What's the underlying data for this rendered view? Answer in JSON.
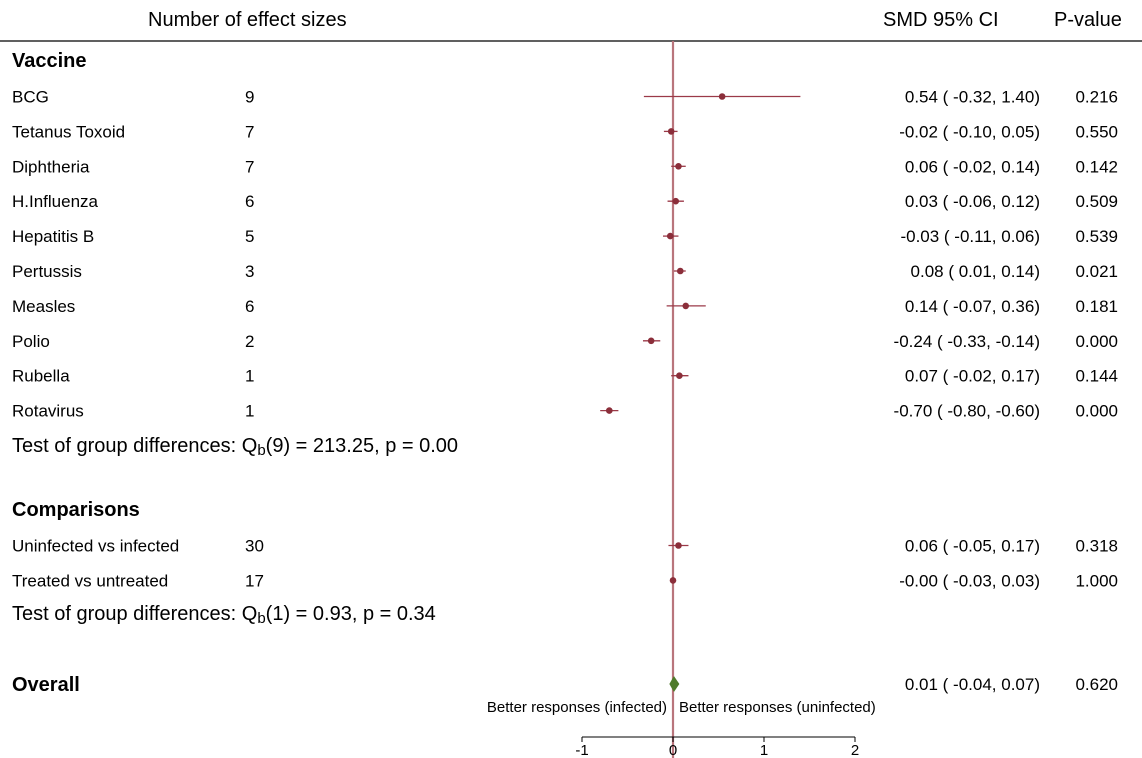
{
  "chart_data": {
    "type": "forest",
    "columns": {
      "count_header": "Number of effect sizes",
      "smd_header": "SMD 95% CI",
      "p_header": "P-value"
    },
    "groups": [
      {
        "name": "Vaccine",
        "rows": [
          {
            "label": "BCG",
            "n": "9",
            "smd": 0.54,
            "lo": -0.32,
            "hi": 1.4,
            "ci_text": "0.54 ( -0.32,  1.40)",
            "p": "0.216"
          },
          {
            "label": "Tetanus Toxoid",
            "n": "7",
            "smd": -0.02,
            "lo": -0.1,
            "hi": 0.05,
            "ci_text": "-0.02 ( -0.10,  0.05)",
            "p": "0.550"
          },
          {
            "label": "Diphtheria",
            "n": "7",
            "smd": 0.06,
            "lo": -0.02,
            "hi": 0.14,
            "ci_text": "0.06 ( -0.02,  0.14)",
            "p": "0.142"
          },
          {
            "label": "H.Influenza",
            "n": "6",
            "smd": 0.03,
            "lo": -0.06,
            "hi": 0.12,
            "ci_text": "0.03 ( -0.06,  0.12)",
            "p": "0.509"
          },
          {
            "label": "Hepatitis B",
            "n": "5",
            "smd": -0.03,
            "lo": -0.11,
            "hi": 0.06,
            "ci_text": "-0.03 ( -0.11,  0.06)",
            "p": "0.539"
          },
          {
            "label": "Pertussis",
            "n": "3",
            "smd": 0.08,
            "lo": 0.01,
            "hi": 0.14,
            "ci_text": "0.08 (  0.01,  0.14)",
            "p": "0.021"
          },
          {
            "label": "Measles",
            "n": "6",
            "smd": 0.14,
            "lo": -0.07,
            "hi": 0.36,
            "ci_text": "0.14 ( -0.07,  0.36)",
            "p": "0.181"
          },
          {
            "label": "Polio",
            "n": "2",
            "smd": -0.24,
            "lo": -0.33,
            "hi": -0.14,
            "ci_text": "-0.24 ( -0.33, -0.14)",
            "p": "0.000"
          },
          {
            "label": "Rubella",
            "n": "1",
            "smd": 0.07,
            "lo": -0.02,
            "hi": 0.17,
            "ci_text": "0.07 ( -0.02,  0.17)",
            "p": "0.144"
          },
          {
            "label": "Rotavirus",
            "n": "1",
            "smd": -0.7,
            "lo": -0.8,
            "hi": -0.6,
            "ci_text": "-0.70 ( -0.80, -0.60)",
            "p": "0.000"
          }
        ],
        "test": {
          "prefix": "Test of group differences: Q",
          "sub": "b",
          "suffix": "(9) = 213.25, p = 0.00"
        }
      },
      {
        "name": "Comparisons",
        "rows": [
          {
            "label": "Uninfected vs infected",
            "n": "30",
            "smd": 0.06,
            "lo": -0.05,
            "hi": 0.17,
            "ci_text": "0.06 ( -0.05,  0.17)",
            "p": "0.318"
          },
          {
            "label": "Treated vs untreated",
            "n": "17",
            "smd": -0.0,
            "lo": -0.03,
            "hi": 0.03,
            "ci_text": "-0.00 ( -0.03,  0.03)",
            "p": "1.000"
          }
        ],
        "test": {
          "prefix": "Test of group differences: Q",
          "sub": "b",
          "suffix": "(1) = 0.93, p = 0.34"
        }
      }
    ],
    "overall": {
      "label": "Overall",
      "smd": 0.01,
      "lo": -0.04,
      "hi": 0.07,
      "ci_text": "0.01 ( -0.04,  0.07)",
      "p": "0.620"
    },
    "annotations": {
      "left": "Better responses (infected)",
      "right": "Better responses (uninfected)"
    },
    "x_axis": {
      "ticks": [
        -1,
        0,
        1,
        2
      ],
      "tick_labels": [
        "-1",
        "0",
        "1",
        "2"
      ],
      "range": [
        -1,
        2
      ],
      "reference_line": 0
    },
    "colors": {
      "point": "#8b2e3a",
      "ci": "#9b3a48",
      "reference": "#b9757c",
      "diamond": "#4e7a2a"
    }
  }
}
